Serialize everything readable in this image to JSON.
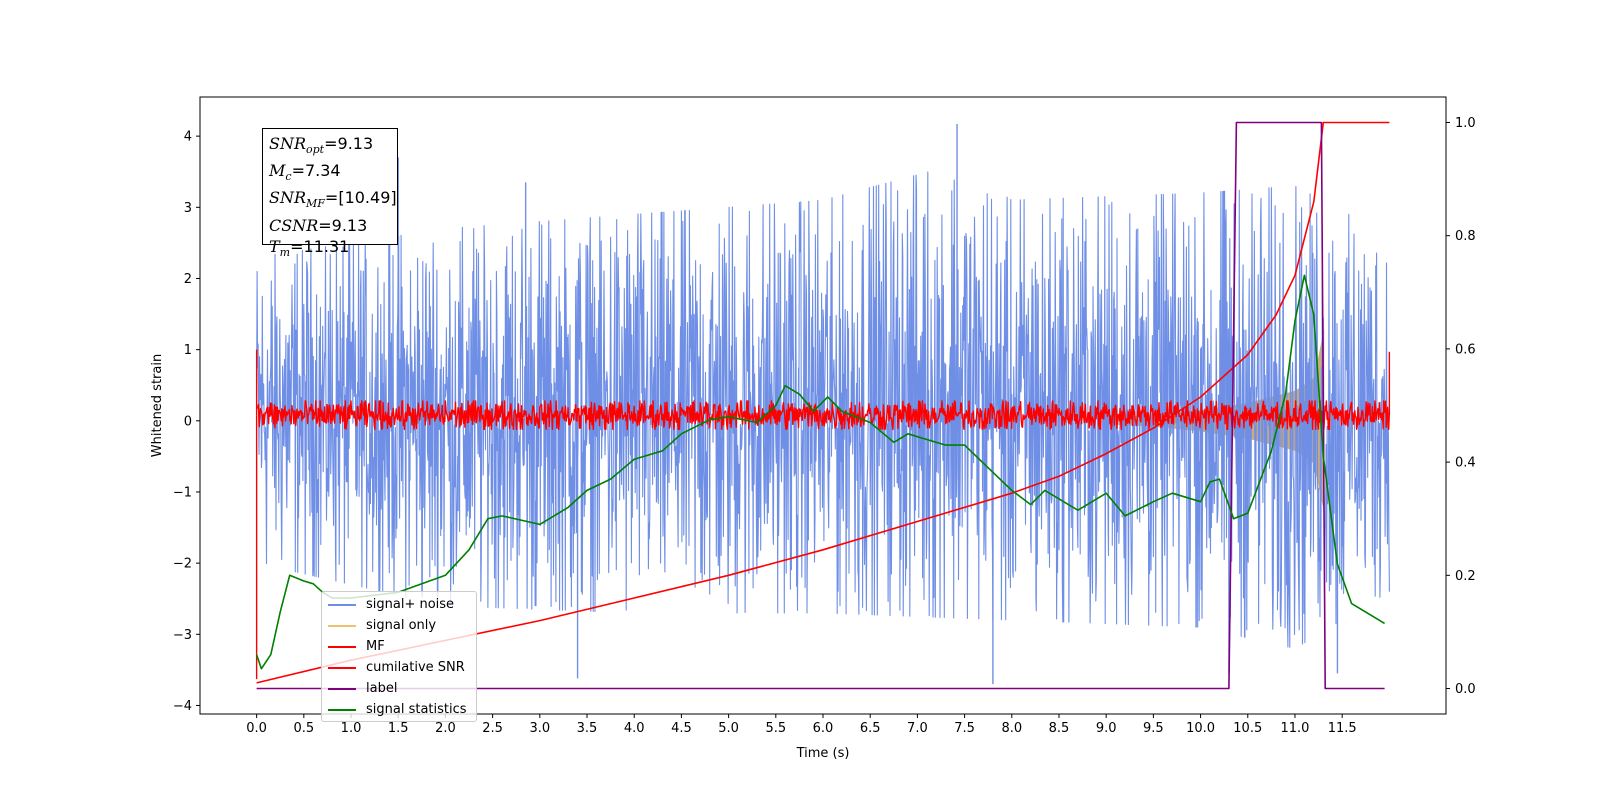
{
  "chart_data": {
    "type": "line",
    "title": "",
    "xlabel": "Time (s)",
    "ylabel": "Whitened strain",
    "y2label": "",
    "xlim": [
      -0.6,
      12.6
    ],
    "ylim": [
      -4.12,
      4.55
    ],
    "y2lim": [
      -0.045,
      1.045
    ],
    "xticks": [
      0.0,
      0.5,
      1.0,
      1.5,
      2.0,
      2.5,
      3.0,
      3.5,
      4.0,
      4.5,
      5.0,
      5.5,
      6.0,
      6.5,
      7.0,
      7.5,
      8.0,
      8.5,
      9.0,
      9.5,
      10.0,
      10.5,
      11.0,
      11.5
    ],
    "xtick_labels": [
      "0.0",
      "0.5",
      "1.0",
      "1.5",
      "2.0",
      "2.5",
      "3.0",
      "3.5",
      "4.0",
      "4.5",
      "5.0",
      "5.5",
      "6.0",
      "6.5",
      "7.0",
      "7.5",
      "8.0",
      "8.5",
      "9.0",
      "9.5",
      "10.0",
      "10.5",
      "11.0",
      "11.5"
    ],
    "yticks": [
      -4,
      -3,
      -2,
      -1,
      0,
      1,
      2,
      3,
      4
    ],
    "ytick_labels": [
      "−4",
      "−3",
      "−2",
      "−1",
      "0",
      "1",
      "2",
      "3",
      "4"
    ],
    "y2ticks": [
      0.0,
      0.2,
      0.4,
      0.6,
      0.8,
      1.0
    ],
    "y2tick_labels": [
      "0.0",
      "0.2",
      "0.4",
      "0.6",
      "0.8",
      "1.0"
    ],
    "grid": false,
    "legend_position": "lower-left",
    "series": [
      {
        "name": "signal+ noise",
        "axis": "left",
        "color": "#6f8fe6",
        "style": "noise",
        "x_range": [
          0.0,
          12.0
        ],
        "envelope_upper": [
          [
            0.0,
            2.3
          ],
          [
            2.0,
            2.7
          ],
          [
            4.0,
            2.9
          ],
          [
            6.0,
            3.1
          ],
          [
            7.4,
            3.6
          ],
          [
            8.0,
            3.1
          ],
          [
            10.0,
            3.2
          ],
          [
            11.0,
            3.3
          ],
          [
            12.0,
            2.6
          ]
        ],
        "envelope_lower": [
          [
            0.0,
            -2.0
          ],
          [
            2.0,
            -2.6
          ],
          [
            4.0,
            -2.7
          ],
          [
            6.0,
            -2.7
          ],
          [
            8.0,
            -2.8
          ],
          [
            10.0,
            -2.9
          ],
          [
            11.0,
            -3.2
          ],
          [
            12.0,
            -2.4
          ]
        ],
        "spikes": [
          [
            1.5,
            3.7
          ],
          [
            2.85,
            3.35
          ],
          [
            7.42,
            4.17
          ],
          [
            3.4,
            -3.62
          ],
          [
            7.8,
            -3.7
          ],
          [
            10.3,
            -3.55
          ],
          [
            11.45,
            -3.55
          ]
        ]
      },
      {
        "name": "signal only",
        "axis": "left",
        "color": "#f0c070",
        "style": "chirp",
        "x_range": [
          9.0,
          11.31
        ],
        "envelope": [
          [
            9.0,
            0.05
          ],
          [
            9.5,
            0.08
          ],
          [
            10.0,
            0.15
          ],
          [
            10.5,
            0.25
          ],
          [
            11.0,
            0.42
          ],
          [
            11.2,
            0.6
          ],
          [
            11.31,
            1.3
          ]
        ]
      },
      {
        "name": "MF",
        "axis": "left",
        "color": "#ff0000",
        "style": "noise",
        "x_range": [
          0.0,
          12.0
        ],
        "envelope_upper": [
          [
            0.0,
            0.28
          ],
          [
            6.0,
            0.28
          ],
          [
            12.0,
            0.28
          ]
        ],
        "envelope_lower": [
          [
            0.0,
            -0.12
          ],
          [
            6.0,
            -0.12
          ],
          [
            12.0,
            -0.12
          ]
        ],
        "spikes": [
          [
            0.0,
            1.0
          ],
          [
            12.0,
            0.97
          ],
          [
            0.0,
            -3.63
          ]
        ]
      },
      {
        "name": "cumilative SNR",
        "axis": "right",
        "color": "#ff0000",
        "points": [
          [
            0.0,
            0.01
          ],
          [
            1.0,
            0.05
          ],
          [
            2.0,
            0.085
          ],
          [
            3.0,
            0.12
          ],
          [
            4.0,
            0.16
          ],
          [
            5.0,
            0.2
          ],
          [
            6.0,
            0.245
          ],
          [
            7.0,
            0.295
          ],
          [
            8.0,
            0.345
          ],
          [
            8.5,
            0.375
          ],
          [
            9.0,
            0.415
          ],
          [
            9.5,
            0.46
          ],
          [
            10.0,
            0.515
          ],
          [
            10.5,
            0.59
          ],
          [
            10.8,
            0.66
          ],
          [
            11.0,
            0.73
          ],
          [
            11.2,
            0.86
          ],
          [
            11.3,
            1.0
          ],
          [
            12.0,
            1.0
          ]
        ]
      },
      {
        "name": "label",
        "axis": "right",
        "color": "#800080",
        "points": [
          [
            0.0,
            0.0
          ],
          [
            10.3,
            0.0
          ],
          [
            10.38,
            1.0
          ],
          [
            11.28,
            1.0
          ],
          [
            11.32,
            0.0
          ],
          [
            11.95,
            0.0
          ]
        ]
      },
      {
        "name": "signal statistics",
        "axis": "right",
        "color": "#008000",
        "points": [
          [
            0.0,
            0.06
          ],
          [
            0.05,
            0.035
          ],
          [
            0.15,
            0.06
          ],
          [
            0.25,
            0.135
          ],
          [
            0.35,
            0.2
          ],
          [
            0.5,
            0.19
          ],
          [
            0.6,
            0.185
          ],
          [
            0.7,
            0.17
          ],
          [
            0.8,
            0.16
          ],
          [
            1.0,
            0.16
          ],
          [
            1.5,
            0.17
          ],
          [
            2.0,
            0.2
          ],
          [
            2.25,
            0.245
          ],
          [
            2.45,
            0.3
          ],
          [
            2.6,
            0.305
          ],
          [
            3.0,
            0.29
          ],
          [
            3.3,
            0.32
          ],
          [
            3.5,
            0.35
          ],
          [
            3.75,
            0.37
          ],
          [
            4.0,
            0.405
          ],
          [
            4.3,
            0.42
          ],
          [
            4.5,
            0.45
          ],
          [
            4.8,
            0.475
          ],
          [
            5.0,
            0.48
          ],
          [
            5.3,
            0.47
          ],
          [
            5.5,
            0.5
          ],
          [
            5.6,
            0.535
          ],
          [
            5.75,
            0.52
          ],
          [
            5.9,
            0.49
          ],
          [
            6.05,
            0.515
          ],
          [
            6.2,
            0.49
          ],
          [
            6.5,
            0.47
          ],
          [
            6.75,
            0.435
          ],
          [
            6.9,
            0.45
          ],
          [
            7.1,
            0.44
          ],
          [
            7.3,
            0.43
          ],
          [
            7.5,
            0.43
          ],
          [
            7.75,
            0.39
          ],
          [
            8.0,
            0.35
          ],
          [
            8.2,
            0.325
          ],
          [
            8.35,
            0.35
          ],
          [
            8.7,
            0.315
          ],
          [
            9.0,
            0.345
          ],
          [
            9.2,
            0.305
          ],
          [
            9.5,
            0.33
          ],
          [
            9.7,
            0.345
          ],
          [
            10.0,
            0.33
          ],
          [
            10.1,
            0.365
          ],
          [
            10.2,
            0.37
          ],
          [
            10.35,
            0.3
          ],
          [
            10.5,
            0.31
          ],
          [
            10.75,
            0.42
          ],
          [
            10.9,
            0.52
          ],
          [
            11.0,
            0.65
          ],
          [
            11.1,
            0.73
          ],
          [
            11.2,
            0.66
          ],
          [
            11.3,
            0.41
          ],
          [
            11.45,
            0.22
          ],
          [
            11.6,
            0.15
          ],
          [
            11.8,
            0.13
          ],
          [
            11.95,
            0.115
          ]
        ]
      }
    ],
    "annotations": [
      {
        "label": "SNR",
        "sub": "opt",
        "value": "=9.13"
      },
      {
        "label": "M",
        "sub": "c",
        "value": "=7.34"
      },
      {
        "label": "SNR",
        "sub": "MF",
        "value": "=[10.49]"
      },
      {
        "label": "CSNR",
        "sub": "",
        "value": "=9.13"
      },
      {
        "label": "T",
        "sub": "m",
        "value": "=11.31"
      }
    ]
  }
}
